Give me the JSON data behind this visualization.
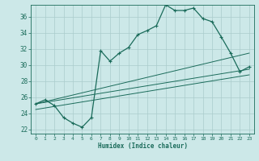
{
  "xlabel": "Humidex (Indice chaleur)",
  "bg_color": "#cce8e8",
  "grid_color": "#aacccc",
  "line_color": "#1a6b5a",
  "xlim": [
    -0.5,
    23.5
  ],
  "ylim": [
    21.5,
    37.5
  ],
  "yticks": [
    22,
    24,
    26,
    28,
    30,
    32,
    34,
    36
  ],
  "xticks": [
    0,
    1,
    2,
    3,
    4,
    5,
    6,
    7,
    8,
    9,
    10,
    11,
    12,
    13,
    14,
    15,
    16,
    17,
    18,
    19,
    20,
    21,
    22,
    23
  ],
  "main_line_x": [
    0,
    1,
    2,
    3,
    4,
    5,
    6,
    7,
    8,
    9,
    10,
    11,
    12,
    13,
    14,
    15,
    16,
    17,
    18,
    19,
    20,
    21,
    22,
    23
  ],
  "main_line_y": [
    25.2,
    25.7,
    25.0,
    23.5,
    22.8,
    22.3,
    23.5,
    31.8,
    30.5,
    31.5,
    32.2,
    33.8,
    34.3,
    34.9,
    37.5,
    36.8,
    36.8,
    37.1,
    35.8,
    35.4,
    33.5,
    31.5,
    29.2,
    29.8
  ],
  "reg_line1_x": [
    0,
    23
  ],
  "reg_line1_y": [
    25.2,
    31.5
  ],
  "reg_line2_x": [
    0,
    23
  ],
  "reg_line2_y": [
    25.2,
    29.5
  ],
  "reg_line3_x": [
    0,
    23
  ],
  "reg_line3_y": [
    24.5,
    28.8
  ]
}
